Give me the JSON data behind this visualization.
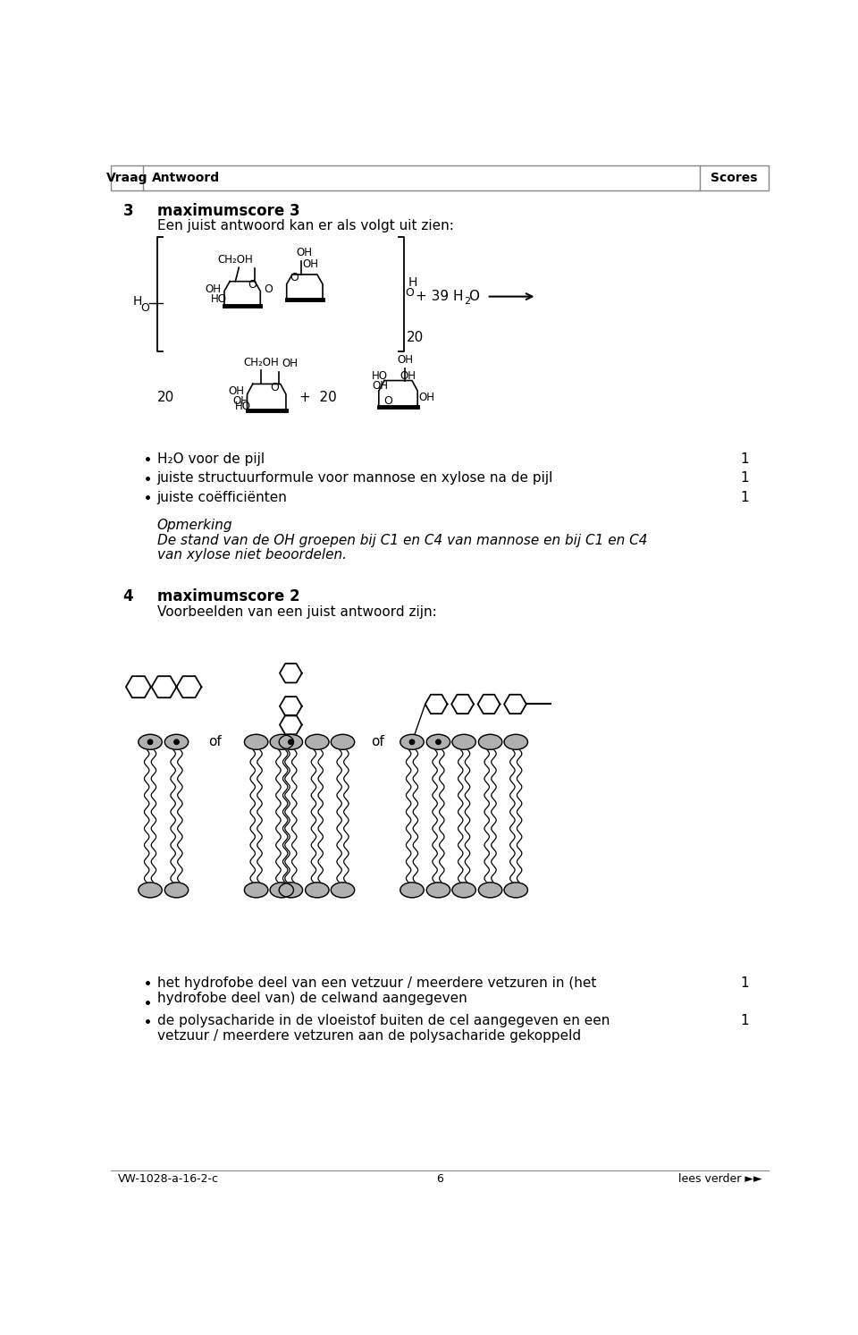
{
  "bg_color": "#ffffff",
  "header": {
    "vraag": "Vraag",
    "antwoord": "Antwoord",
    "scores": "Scores"
  },
  "footer_left": "VW-1028-a-16-2-c",
  "footer_center": "6",
  "footer_right": "lees verder ►►",
  "q3_number": "3",
  "q3_title": "maximumscore 3",
  "q3_subtitle": "Een juist antwoord kan er als volgt uit zien:",
  "q3_bullets": [
    {
      "text": "H₂O voor de pijl",
      "score": "1"
    },
    {
      "text": "juiste structuurformule voor mannose en xylose na de pijl",
      "score": "1"
    },
    {
      "text": "juiste coëfficiënten",
      "score": "1"
    }
  ],
  "opmerking_title": "Opmerking",
  "opmerking_line1": "De stand van de OH groepen bij C1 en C4 van mannose en bij C1 en C4",
  "opmerking_line2": "van xylose niet beoordelen.",
  "q4_number": "4",
  "q4_title": "maximumscore 2",
  "q4_subtitle": "Voorbeelden van een juist antwoord zijn:",
  "q4_bullet1_line1": "het hydrofobe deel van een vetzuur / meerdere vetzuren in (het",
  "q4_bullet1_line2": "hydrofobe deel van) de celwand aangegeven",
  "q4_bullet1_score": "1",
  "q4_bullet2_line1": "de polysacharide in de vloeistof buiten de cel aangegeven en een",
  "q4_bullet2_line2": "vetzuur / meerdere vetzuren aan de polysacharide gekoppeld",
  "q4_bullet2_score": "1",
  "lipid_head_color": "#aaaaaa",
  "lipid_head_outline": "#000000",
  "lipid_dot_color": "#000000"
}
